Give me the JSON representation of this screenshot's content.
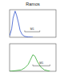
{
  "chart_data": [
    {
      "type": "line",
      "title": "Ramos",
      "log": "x",
      "tick_labels": false,
      "x": [
        1,
        1.5,
        2,
        3,
        4,
        6,
        8,
        12,
        20,
        40,
        100
      ],
      "values": [
        5,
        30,
        70,
        95,
        80,
        50,
        25,
        10,
        3,
        1,
        0
      ],
      "color": "#3355cc",
      "xlim": [
        1,
        10000
      ],
      "ylim": [
        0,
        100
      ],
      "annotations": [
        {
          "text": "M1",
          "x": [
            20,
            400
          ],
          "y": 20
        }
      ]
    },
    {
      "type": "line",
      "log": "x",
      "tick_labels": false,
      "x": [
        1,
        3,
        10,
        20,
        40,
        60,
        100,
        150,
        250,
        500,
        1000,
        3000
      ],
      "values": [
        0,
        2,
        5,
        12,
        25,
        40,
        60,
        55,
        35,
        15,
        5,
        0
      ],
      "color": "#33aa33",
      "xlim": [
        1,
        10000
      ],
      "ylim": [
        0,
        100
      ],
      "annotations": [
        {
          "text": "M1",
          "x": [
            100,
            3000
          ],
          "y": 20
        }
      ]
    }
  ]
}
